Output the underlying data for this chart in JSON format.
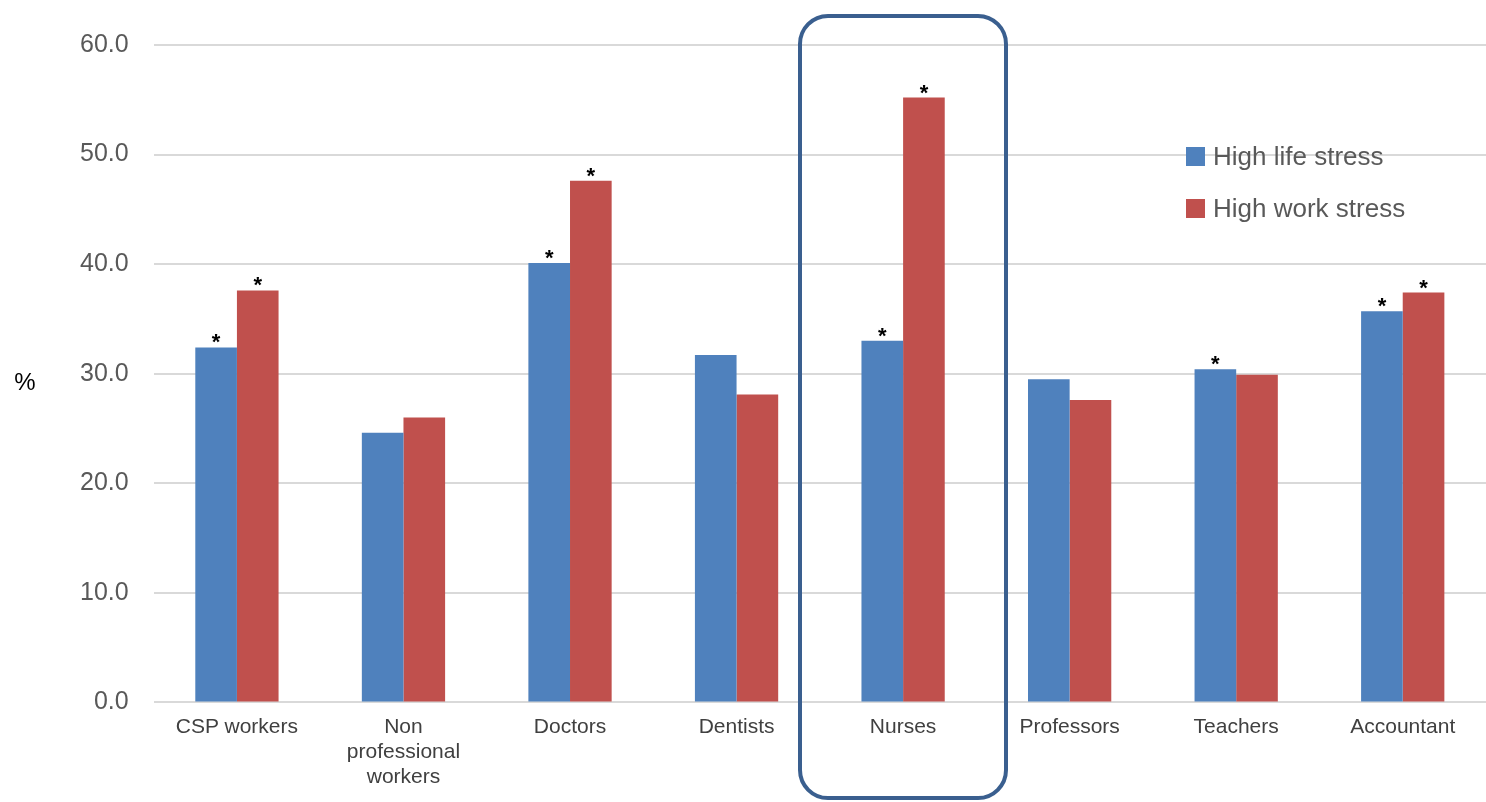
{
  "chart_data": {
    "type": "bar",
    "ylabel": "%",
    "categories": [
      "CSP workers",
      "Non professional workers",
      "Doctors",
      "Dentists",
      "Nurses",
      "Professors",
      "Teachers",
      "Accountant"
    ],
    "series": [
      {
        "name": "High life stress",
        "color": "#4f81bd",
        "values": [
          32.4,
          24.6,
          40.1,
          31.7,
          33.0,
          29.5,
          30.4,
          35.7
        ]
      },
      {
        "name": "High work stress",
        "color": "#c0504d",
        "values": [
          37.6,
          26.0,
          47.6,
          28.1,
          55.2,
          27.6,
          29.9,
          37.4
        ]
      }
    ],
    "ylim": [
      0,
      60
    ],
    "yticks": [
      {
        "value": 0,
        "label": "0.0"
      },
      {
        "value": 10,
        "label": "10.0"
      },
      {
        "value": 20,
        "label": "20.0"
      },
      {
        "value": 30,
        "label": "30.0"
      },
      {
        "value": 40,
        "label": "40.0"
      },
      {
        "value": 50,
        "label": "50.0"
      },
      {
        "value": 60,
        "label": "60.0"
      }
    ],
    "grid": "y",
    "legend": "top right",
    "annotations": [
      {
        "text": "*",
        "x": "CSP workers",
        "y": 32.4
      },
      {
        "text": "*",
        "x": "CSP workers",
        "y": 37.6
      },
      {
        "text": "*",
        "x": "Doctors",
        "y": 40.1
      },
      {
        "text": "*",
        "x": "Doctors",
        "y": 47.6
      },
      {
        "text": "*",
        "x": "Nurses",
        "y": 33.0
      },
      {
        "text": "*",
        "x": "Nurses",
        "y": 55.2
      },
      {
        "text": "*",
        "x": "Teachers",
        "y": 30.4
      },
      {
        "text": "*",
        "x": "Accountant",
        "y": 35.7
      },
      {
        "text": "*",
        "x": "Accountant",
        "y": 37.4
      }
    ]
  }
}
